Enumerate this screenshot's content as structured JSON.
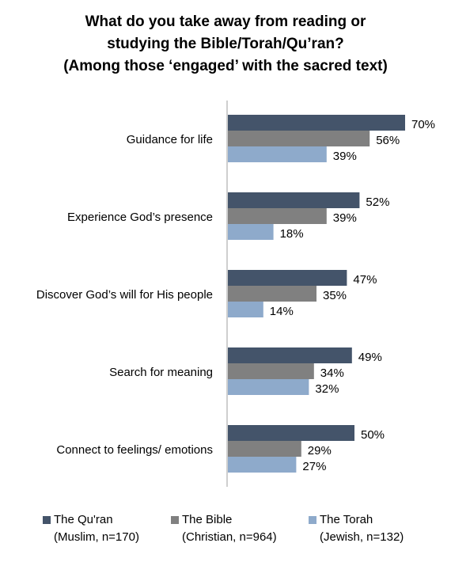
{
  "title_lines": [
    "What do you take away from reading or",
    "studying the Bible/Torah/Qu’ran?",
    "(Among those ‘engaged’ with the sacred text)"
  ],
  "legend": [
    {
      "name": "The Qu'ran",
      "sub": "(Muslim, n=170)"
    },
    {
      "name": "The Bible",
      "sub": "(Christian, n=964)"
    },
    {
      "name": "The Torah",
      "sub": "(Jewish, n=132)"
    }
  ],
  "colors": {
    "quran": "#44546a",
    "bible": "#808080",
    "torah": "#8eaacb",
    "axis": "#bfbfbf"
  },
  "chart_data": {
    "type": "bar",
    "orientation": "horizontal",
    "categories": [
      "Guidance for life",
      "Experience God’s presence",
      "Discover God’s will for His people",
      "Search for meaning",
      "Connect to feelings/ emotions"
    ],
    "series": [
      {
        "name": "The Qu'ran (Muslim, n=170)",
        "values": [
          70,
          52,
          47,
          49,
          50
        ]
      },
      {
        "name": "The Bible (Christian, n=964)",
        "values": [
          56,
          39,
          35,
          34,
          29
        ]
      },
      {
        "name": "The Torah (Jewish, n=132)",
        "values": [
          39,
          18,
          14,
          32,
          27
        ]
      }
    ],
    "value_suffix": "%",
    "xlim": [
      0,
      100
    ],
    "grid": false,
    "legend_position": "bottom"
  }
}
